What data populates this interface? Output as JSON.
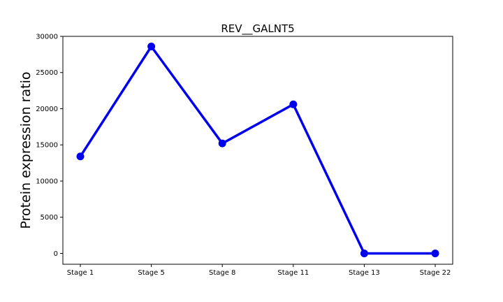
{
  "chart_data": {
    "type": "line",
    "title": "REV__GALNT5",
    "xlabel": "",
    "ylabel": "Protein expression ratio",
    "categories": [
      "Stage 1",
      "Stage 5",
      "Stage 8",
      "Stage 11",
      "Stage 13",
      "Stage 22"
    ],
    "series": [
      {
        "values": [
          13400,
          28600,
          15200,
          20600,
          0,
          0
        ]
      }
    ],
    "ylim": [
      -1500,
      30000
    ],
    "yticks": [
      0,
      5000,
      10000,
      15000,
      20000,
      25000,
      30000
    ],
    "line_color": "#0000ee",
    "marker": "circle",
    "grid": false,
    "legend": "none"
  }
}
